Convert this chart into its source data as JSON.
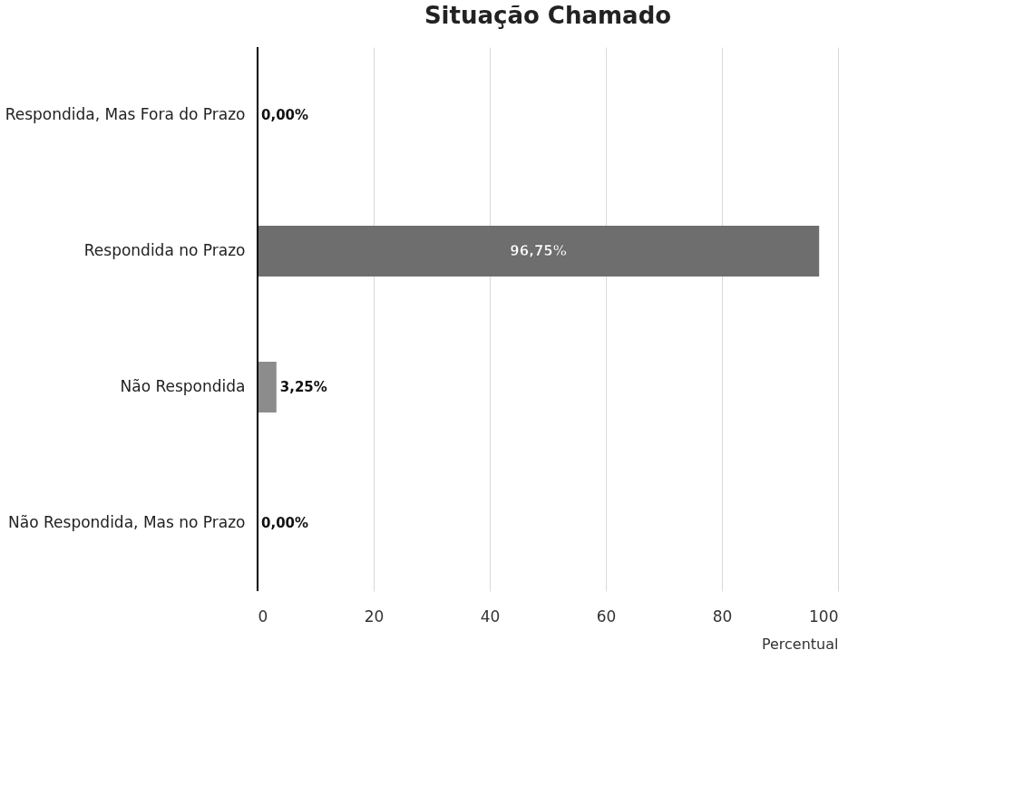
{
  "chart_data": {
    "type": "bar",
    "orientation": "horizontal",
    "title": "Situação Chamado",
    "xlabel": "Percentual",
    "categories": [
      "Respondida, Mas Fora do Prazo",
      "Respondida no Prazo",
      "Não Respondida",
      "Não Respondida, Mas no Prazo"
    ],
    "values": [
      0,
      96.75,
      3.25,
      0
    ],
    "colors": [
      "#6e6e6e",
      "#6e6e6e",
      "#8c8c8c",
      "#6e6e6e"
    ],
    "value_labels": [
      "0,00%",
      "96,75%",
      "3,25%",
      "0,00%"
    ],
    "xlim": [
      0,
      100
    ],
    "xticks": [
      0,
      20,
      40,
      60,
      80,
      100
    ],
    "grid": "x"
  }
}
